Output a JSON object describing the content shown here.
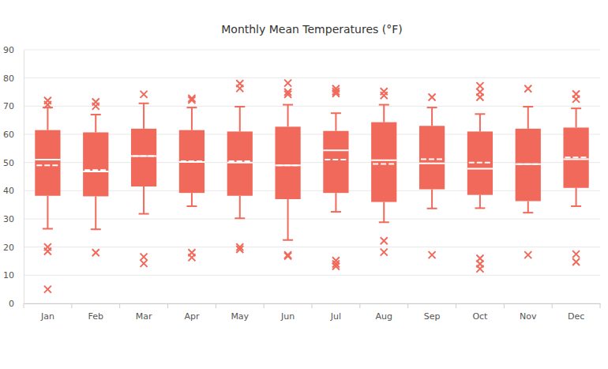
{
  "chart_data": {
    "type": "box",
    "title": "Monthly Mean Temperatures (°F)",
    "categories": [
      "Jan",
      "Feb",
      "Mar",
      "Apr",
      "May",
      "Jun",
      "Jul",
      "Aug",
      "Sep",
      "Oct",
      "Nov",
      "Dec"
    ],
    "boxes": [
      {
        "min": 26.5,
        "q1": 38.2,
        "median": 51,
        "mean": 49,
        "q3": 61.5,
        "max": 69.5,
        "outliers": [
          72,
          70.5,
          20,
          18.5,
          5
        ]
      },
      {
        "min": 26.3,
        "q1": 38,
        "median": 46.8,
        "mean": 47.3,
        "q3": 60.7,
        "max": 67,
        "outliers": [
          71.5,
          70,
          18
        ]
      },
      {
        "min": 31.8,
        "q1": 41.5,
        "median": 52.3,
        "mean": 52.3,
        "q3": 62,
        "max": 71,
        "outliers": [
          74.2,
          16.5,
          14.2
        ]
      },
      {
        "min": 34.5,
        "q1": 39.2,
        "median": 50.2,
        "mean": 50.5,
        "q3": 61.5,
        "max": 69.5,
        "outliers": [
          72.8,
          72.2,
          18,
          16.3
        ]
      },
      {
        "min": 30.2,
        "q1": 38.2,
        "median": 50,
        "mean": 50.5,
        "q3": 61,
        "max": 69.8,
        "outliers": [
          78,
          76.3,
          20,
          19.2
        ]
      },
      {
        "min": 22.5,
        "q1": 37,
        "median": 49,
        "mean": 49,
        "q3": 62.7,
        "max": 70.5,
        "outliers": [
          78.2,
          75,
          74.2,
          17.2,
          16.8
        ]
      },
      {
        "min": 32.5,
        "q1": 39.2,
        "median": 54.3,
        "mean": 51,
        "q3": 61.2,
        "max": 67.5,
        "outliers": [
          76.2,
          75.2,
          74.5,
          15.2,
          14,
          13.2
        ]
      },
      {
        "min": 28.8,
        "q1": 36,
        "median": 50.8,
        "mean": 49.5,
        "q3": 64.3,
        "max": 70.5,
        "outliers": [
          75.2,
          73.8,
          22.2,
          18.2
        ]
      },
      {
        "min": 33.7,
        "q1": 40.5,
        "median": 49.7,
        "mean": 51.2,
        "q3": 63,
        "max": 69.5,
        "outliers": [
          73.2,
          17.2
        ]
      },
      {
        "min": 33.8,
        "q1": 38.5,
        "median": 47.8,
        "mean": 50,
        "q3": 61,
        "max": 67.2,
        "outliers": [
          77.2,
          75,
          73.2,
          16,
          14,
          12.3
        ]
      },
      {
        "min": 32.2,
        "q1": 36.3,
        "median": 49.4,
        "mean": 49.4,
        "q3": 62,
        "max": 69.8,
        "outliers": [
          76.2,
          17.2
        ]
      },
      {
        "min": 34.5,
        "q1": 41,
        "median": 51.2,
        "mean": 51.8,
        "q3": 62.4,
        "max": 69.2,
        "outliers": [
          74.3,
          72.5,
          17.5,
          14.7
        ]
      }
    ],
    "color": "#f0695a",
    "marker": "x",
    "ylim": [
      0,
      90
    ],
    "yticks": [
      0,
      10,
      20,
      30,
      40,
      50,
      60,
      70,
      80,
      90
    ],
    "grid": true
  }
}
